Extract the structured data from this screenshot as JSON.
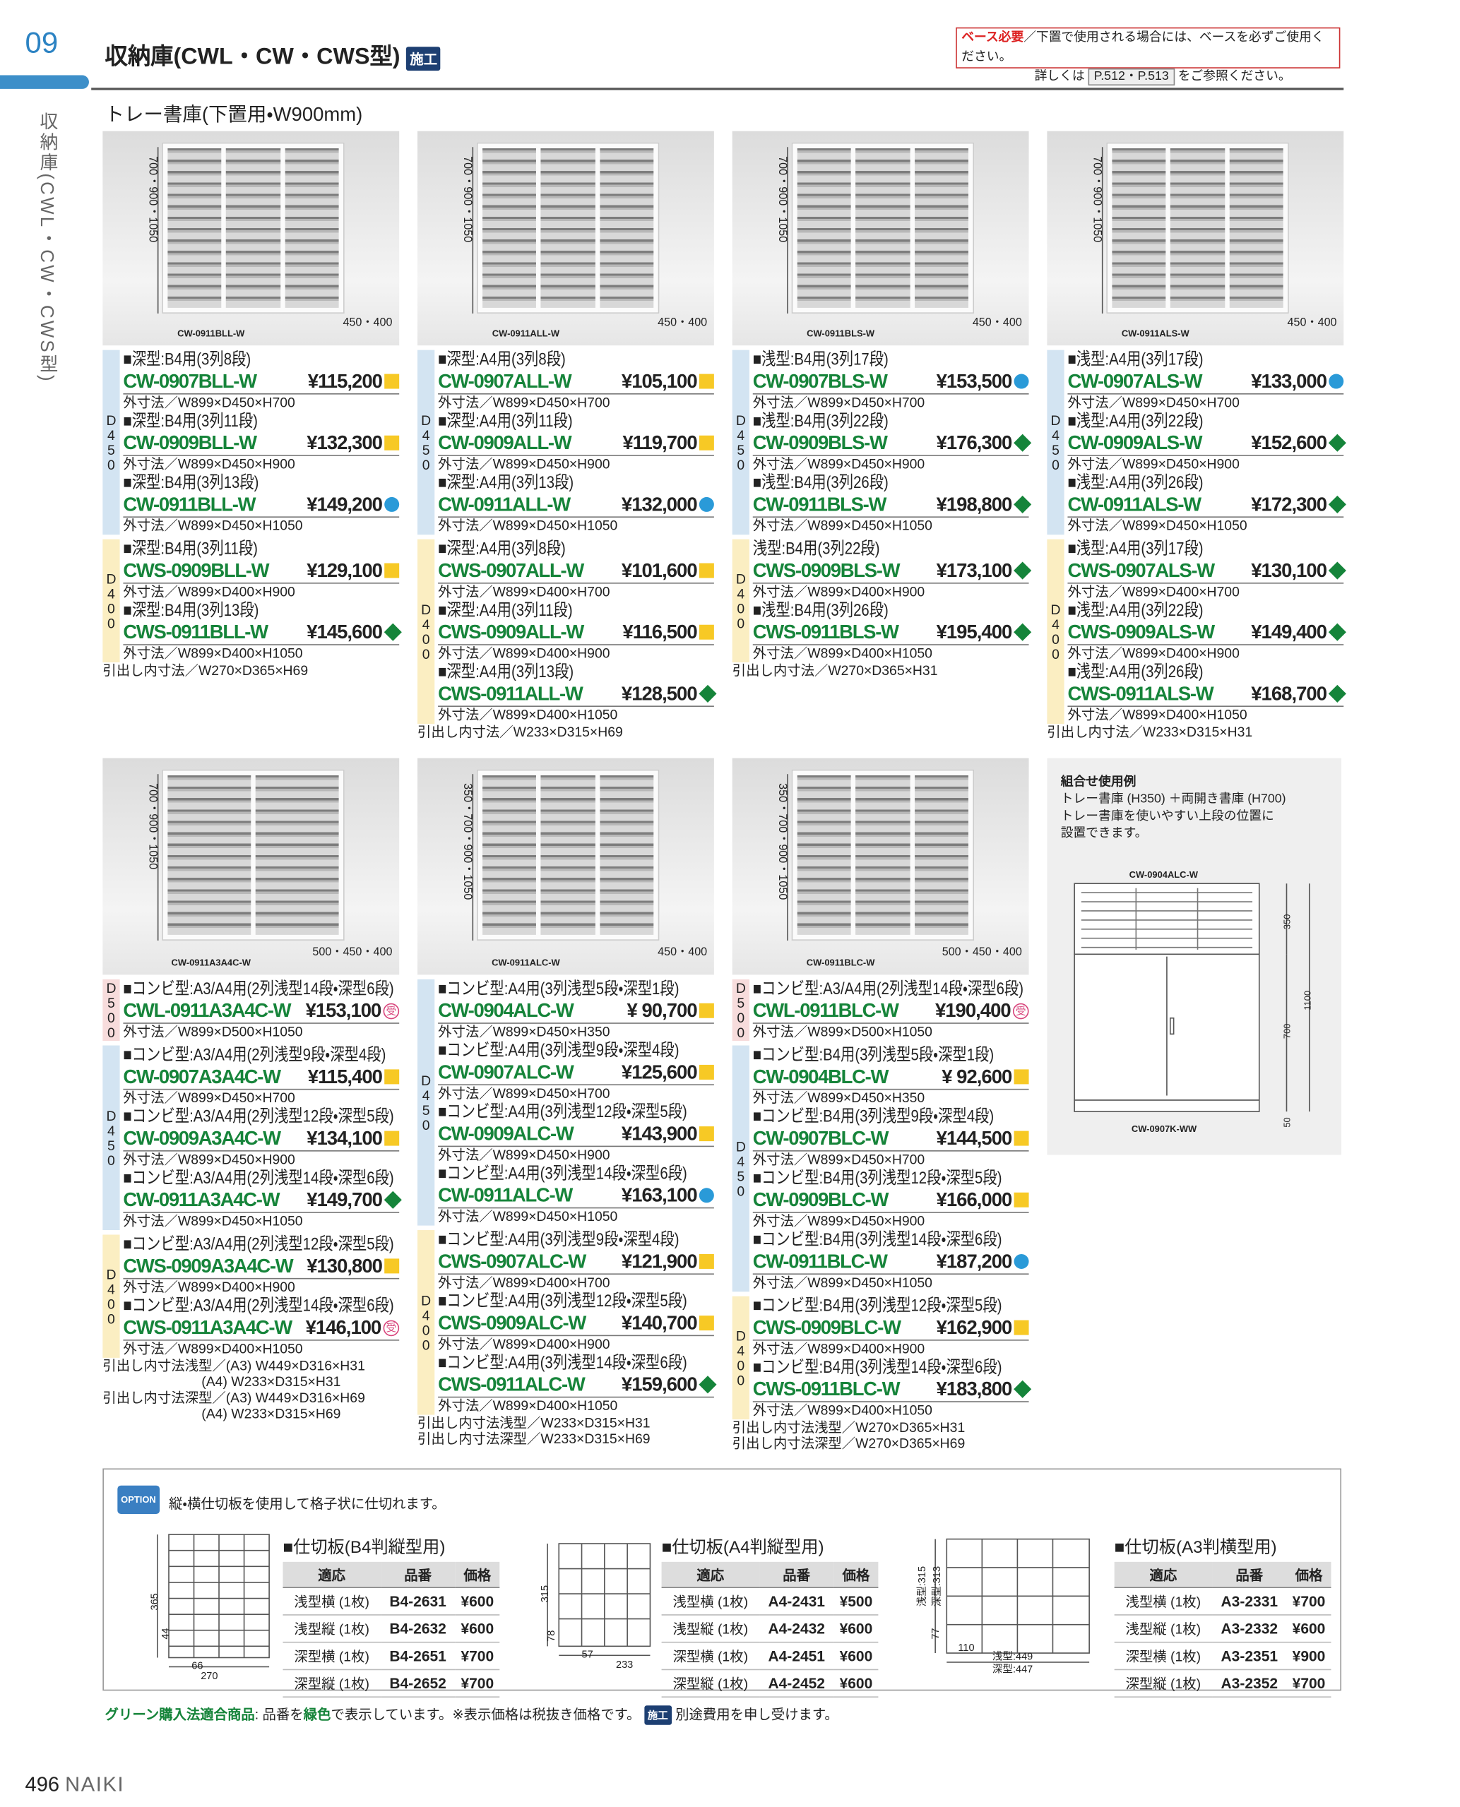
{
  "header": {
    "page_code": "09",
    "title": "収納庫(CWL・CW・CWS型)",
    "badge": "施工",
    "notice_label": "ベース必要",
    "notice_text": "／下置で使用される場合には、ベースを必ずご使用ください。",
    "notice_line2": "詳しくは",
    "notice_ref": "P.512・P.513",
    "notice_end": "をご参照ください。"
  },
  "side_label": "収納庫(CWL・CW・CWS型)",
  "section_title": "トレー書庫(下置用・W900mm)",
  "products": [
    {
      "image": {
        "caption": "CW-0911BLL-W",
        "height": "700・900・1050",
        "depth": "450・400"
      },
      "groups": [
        {
          "depth": "D450",
          "items": [
            {
              "spec": "■深型:B4用(3列8段)",
              "code": "CW-0907BLL-W",
              "price": "¥115,200",
              "mark": "square",
              "dims": "外寸法／W899×D450×H700"
            },
            {
              "spec": "■深型:B4用(3列11段)",
              "code": "CW-0909BLL-W",
              "price": "¥132,300",
              "mark": "square",
              "dims": "外寸法／W899×D450×H900"
            },
            {
              "spec": "■深型:B4用(3列13段)",
              "code": "CW-0911BLL-W",
              "price": "¥149,200",
              "mark": "circle",
              "dims": "外寸法／W899×D450×H1050"
            }
          ]
        },
        {
          "depth": "D400",
          "items": [
            {
              "spec": "■深型:B4用(3列11段)",
              "code": "CWS-0909BLL-W",
              "price": "¥129,100",
              "mark": "square",
              "dims": "外寸法／W899×D400×H900"
            },
            {
              "spec": "■深型:B4用(3列13段)",
              "code": "CWS-0911BLL-W",
              "price": "¥145,600",
              "mark": "diamond",
              "dims": "外寸法／W899×D400×H1050"
            }
          ]
        }
      ],
      "notes": [
        "引出し内寸法／W270×D365×H69"
      ]
    },
    {
      "image": {
        "caption": "CW-0911ALL-W",
        "height": "700・900・1050",
        "depth": "450・400"
      },
      "groups": [
        {
          "depth": "D450",
          "items": [
            {
              "spec": "■深型:A4用(3列8段)",
              "code": "CW-0907ALL-W",
              "price": "¥105,100",
              "mark": "square",
              "dims": "外寸法／W899×D450×H700"
            },
            {
              "spec": "■深型:A4用(3列11段)",
              "code": "CW-0909ALL-W",
              "price": "¥119,700",
              "mark": "square",
              "dims": "外寸法／W899×D450×H900"
            },
            {
              "spec": "■深型:A4用(3列13段)",
              "code": "CW-0911ALL-W",
              "price": "¥132,000",
              "mark": "circle",
              "dims": "外寸法／W899×D450×H1050"
            }
          ]
        },
        {
          "depth": "D400",
          "items": [
            {
              "spec": "■深型:A4用(3列8段)",
              "code": "CWS-0907ALL-W",
              "price": "¥101,600",
              "mark": "square",
              "dims": "外寸法／W899×D400×H700"
            },
            {
              "spec": "■深型:A4用(3列11段)",
              "code": "CWS-0909ALL-W",
              "price": "¥116,500",
              "mark": "square",
              "dims": "外寸法／W899×D400×H900"
            },
            {
              "spec": "■深型:A4用(3列13段)",
              "code": "CWS-0911ALL-W",
              "price": "¥128,500",
              "mark": "diamond",
              "dims": "外寸法／W899×D400×H1050"
            }
          ]
        }
      ],
      "notes": [
        "引出し内寸法／W233×D315×H69"
      ]
    },
    {
      "image": {
        "caption": "CW-0911BLS-W",
        "height": "700・900・1050",
        "depth": "450・400"
      },
      "groups": [
        {
          "depth": "D450",
          "items": [
            {
              "spec": "■浅型:B4用(3列17段)",
              "code": "CW-0907BLS-W",
              "price": "¥153,500",
              "mark": "circle",
              "dims": "外寸法／W899×D450×H700"
            },
            {
              "spec": "■浅型:B4用(3列22段)",
              "code": "CW-0909BLS-W",
              "price": "¥176,300",
              "mark": "diamond",
              "dims": "外寸法／W899×D450×H900"
            },
            {
              "spec": "■浅型:B4用(3列26段)",
              "code": "CW-0911BLS-W",
              "price": "¥198,800",
              "mark": "diamond",
              "dims": "外寸法／W899×D450×H1050"
            }
          ]
        },
        {
          "depth": "D400",
          "items": [
            {
              "spec": "浅型:B4用(3列22段)",
              "code": "CWS-0909BLS-W",
              "price": "¥173,100",
              "mark": "diamond",
              "dims": "外寸法／W899×D400×H900"
            },
            {
              "spec": "■浅型:B4用(3列26段)",
              "code": "CWS-0911BLS-W",
              "price": "¥195,400",
              "mark": "diamond",
              "dims": "外寸法／W899×D400×H1050"
            }
          ]
        }
      ],
      "notes": [
        "引出し内寸法／W270×D365×H31"
      ]
    },
    {
      "image": {
        "caption": "CW-0911ALS-W",
        "height": "700・900・1050",
        "depth": "450・400"
      },
      "groups": [
        {
          "depth": "D450",
          "items": [
            {
              "spec": "■浅型:A4用(3列17段)",
              "code": "CW-0907ALS-W",
              "price": "¥133,000",
              "mark": "circle",
              "dims": "外寸法／W899×D450×H700"
            },
            {
              "spec": "■浅型:A4用(3列22段)",
              "code": "CW-0909ALS-W",
              "price": "¥152,600",
              "mark": "diamond",
              "dims": "外寸法／W899×D450×H900"
            },
            {
              "spec": "■浅型:A4用(3列26段)",
              "code": "CW-0911ALS-W",
              "price": "¥172,300",
              "mark": "diamond",
              "dims": "外寸法／W899×D450×H1050"
            }
          ]
        },
        {
          "depth": "D400",
          "items": [
            {
              "spec": "■浅型:A4用(3列17段)",
              "code": "CWS-0907ALS-W",
              "price": "¥130,100",
              "mark": "diamond",
              "dims": "外寸法／W899×D400×H700"
            },
            {
              "spec": "■浅型:A4用(3列22段)",
              "code": "CWS-0909ALS-W",
              "price": "¥149,400",
              "mark": "diamond",
              "dims": "外寸法／W899×D400×H900"
            },
            {
              "spec": "■浅型:A4用(3列26段)",
              "code": "CWS-0911ALS-W",
              "price": "¥168,700",
              "mark": "diamond",
              "dims": "外寸法／W899×D400×H1050"
            }
          ]
        }
      ],
      "notes": [
        "引出し内寸法／W233×D315×H31"
      ]
    },
    {
      "image": {
        "caption": "CW-0911A3A4C-W",
        "height": "700・900・1050",
        "depth": "500・450・400"
      },
      "groups": [
        {
          "depth": "D500",
          "items": [
            {
              "spec": "■コンビ型:A3/A4用(2列浅型14段・深型6段)",
              "code": "CWL-0911A3A4C-W",
              "price": "¥153,100",
              "mark": "受",
              "dims": "外寸法／W899×D500×H1050"
            }
          ]
        },
        {
          "depth": "D450",
          "items": [
            {
              "spec": "■コンビ型:A3/A4用(2列浅型9段・深型4段)",
              "code": "CW-0907A3A4C-W",
              "price": "¥115,400",
              "mark": "square",
              "dims": "外寸法／W899×D450×H700"
            },
            {
              "spec": "■コンビ型:A3/A4用(2列浅型12段・深型5段)",
              "code": "CW-0909A3A4C-W",
              "price": "¥134,100",
              "mark": "square",
              "dims": "外寸法／W899×D450×H900"
            },
            {
              "spec": "■コンビ型:A3/A4用(2列浅型14段・深型6段)",
              "code": "CW-0911A3A4C-W",
              "price": "¥149,700",
              "mark": "diamond",
              "dims": "外寸法／W899×D450×H1050"
            }
          ]
        },
        {
          "depth": "D400",
          "items": [
            {
              "spec": "■コンビ型:A3/A4用(2列浅型12段・深型5段)",
              "code": "CWS-0909A3A4C-W",
              "price": "¥130,800",
              "mark": "square",
              "dims": "外寸法／W899×D400×H900"
            },
            {
              "spec": "■コンビ型:A3/A4用(2列浅型14段・深型6段)",
              "code": "CWS-0911A3A4C-W",
              "price": "¥146,100",
              "mark": "受",
              "dims": "外寸法／W899×D400×H1050"
            }
          ]
        }
      ],
      "notes": [
        "引出し内寸法浅型／(A3) W449×D316×H31",
        "                          (A4) W233×D315×H31",
        "引出し内寸法深型／(A3) W449×D316×H69",
        "                          (A4) W233×D315×H69"
      ]
    },
    {
      "image": {
        "caption": "CW-0911ALC-W",
        "height": "350・700・900・1050",
        "depth": "450・400"
      },
      "groups": [
        {
          "depth": "D450",
          "items": [
            {
              "spec": "■コンビ型:A4用(3列浅型5段・深型1段)",
              "code": "CW-0904ALC-W",
              "price": "¥ 90,700",
              "mark": "square",
              "dims": "外寸法／W899×D450×H350"
            },
            {
              "spec": "■コンビ型:A4用(3列浅型9段・深型4段)",
              "code": "CW-0907ALC-W",
              "price": "¥125,600",
              "mark": "square",
              "dims": "外寸法／W899×D450×H700"
            },
            {
              "spec": "■コンビ型:A4用(3列浅型12段・深型5段)",
              "code": "CW-0909ALC-W",
              "price": "¥143,900",
              "mark": "square",
              "dims": "外寸法／W899×D450×H900"
            },
            {
              "spec": "■コンビ型:A4用(3列浅型14段・深型6段)",
              "code": "CW-0911ALC-W",
              "price": "¥163,100",
              "mark": "circle",
              "dims": "外寸法／W899×D450×H1050"
            }
          ]
        },
        {
          "depth": "D400",
          "items": [
            {
              "spec": "■コンビ型:A4用(3列浅型9段・深型4段)",
              "code": "CWS-0907ALC-W",
              "price": "¥121,900",
              "mark": "square",
              "dims": "外寸法／W899×D400×H700"
            },
            {
              "spec": "■コンビ型:A4用(3列浅型12段・深型5段)",
              "code": "CWS-0909ALC-W",
              "price": "¥140,700",
              "mark": "square",
              "dims": "外寸法／W899×D400×H900"
            },
            {
              "spec": "■コンビ型:A4用(3列浅型14段・深型6段)",
              "code": "CWS-0911ALC-W",
              "price": "¥159,600",
              "mark": "diamond",
              "dims": "外寸法／W899×D400×H1050"
            }
          ]
        }
      ],
      "notes": [
        "引出し内寸法浅型／W233×D315×H31",
        "引出し内寸法深型／W233×D315×H69"
      ]
    },
    {
      "image": {
        "caption": "CW-0911BLC-W",
        "height": "350・700・900・1050",
        "depth": "500・450・400"
      },
      "groups": [
        {
          "depth": "D500",
          "items": [
            {
              "spec": "■コンビ型:A3/A4用(2列浅型14段・深型6段)",
              "code": "CWL-0911BLC-W",
              "price": "¥190,400",
              "mark": "受",
              "dims": "外寸法／W899×D500×H1050"
            }
          ]
        },
        {
          "depth": "D450",
          "items": [
            {
              "spec": "■コンビ型:B4用(3列浅型5段・深型1段)",
              "code": "CW-0904BLC-W",
              "price": "¥ 92,600",
              "mark": "square",
              "dims": "外寸法／W899×D450×H350"
            },
            {
              "spec": "■コンビ型:B4用(3列浅型9段・深型4段)",
              "code": "CW-0907BLC-W",
              "price": "¥144,500",
              "mark": "square",
              "dims": "外寸法／W899×D450×H700"
            },
            {
              "spec": "■コンビ型:B4用(3列浅型12段・深型5段)",
              "code": "CW-0909BLC-W",
              "price": "¥166,000",
              "mark": "square",
              "dims": "外寸法／W899×D450×H900"
            },
            {
              "spec": "■コンビ型:B4用(3列浅型14段・深型6段)",
              "code": "CW-0911BLC-W",
              "price": "¥187,200",
              "mark": "circle",
              "dims": "外寸法／W899×D450×H1050"
            }
          ]
        },
        {
          "depth": "D400",
          "items": [
            {
              "spec": "■コンビ型:B4用(3列浅型12段・深型5段)",
              "code": "CWS-0909BLC-W",
              "price": "¥162,900",
              "mark": "square",
              "dims": "外寸法／W899×D400×H900"
            },
            {
              "spec": "■コンビ型:B4用(3列浅型14段・深型6段)",
              "code": "CWS-0911BLC-W",
              "price": "¥183,800",
              "mark": "diamond",
              "dims": "外寸法／W899×D400×H1050"
            }
          ]
        }
      ],
      "notes": [
        "引出し内寸法浅型／W270×D365×H31",
        "引出し内寸法深型／W270×D365×H69"
      ]
    }
  ],
  "combo_example": {
    "title": "組合せ使用例",
    "lines": [
      "トレー書庫 (H350) ＋両開き書庫 (H700)",
      "トレー書庫を使いやすい上段の位置に",
      "設置できます。"
    ],
    "top_model": "CW-0904ALC-W",
    "bottom_model": "CW-0907K-WW",
    "dims": [
      "350",
      "700",
      "1100",
      "50"
    ]
  },
  "option": {
    "badge": "OPTION",
    "text": "縦・横仕切板を使用して格子状に仕切れます。",
    "tables": [
      {
        "title": "■仕切板(B4判縦型用)",
        "headers": [
          "適応",
          "品番",
          "価格"
        ],
        "rows": [
          [
            "浅型横 (1枚)",
            "B4-2631",
            "¥600"
          ],
          [
            "浅型縦 (1枚)",
            "B4-2632",
            "¥600"
          ],
          [
            "深型横 (1枚)",
            "B4-2651",
            "¥700"
          ],
          [
            "深型縦 (1枚)",
            "B4-2652",
            "¥700"
          ]
        ],
        "diagram_dims": [
          "365",
          "44",
          "66",
          "270"
        ]
      },
      {
        "title": "■仕切板(A4判縦型用)",
        "headers": [
          "適応",
          "品番",
          "価格"
        ],
        "rows": [
          [
            "浅型横 (1枚)",
            "A4-2431",
            "¥500"
          ],
          [
            "浅型縦 (1枚)",
            "A4-2432",
            "¥600"
          ],
          [
            "深型横 (1枚)",
            "A4-2451",
            "¥600"
          ],
          [
            "深型縦 (1枚)",
            "A4-2452",
            "¥600"
          ]
        ],
        "diagram_dims": [
          "315",
          "78",
          "57",
          "233"
        ]
      },
      {
        "title": "■仕切板(A3判横型用)",
        "headers": [
          "適応",
          "品番",
          "価格"
        ],
        "rows": [
          [
            "浅型横 (1枚)",
            "A3-2331",
            "¥700"
          ],
          [
            "浅型縦 (1枚)",
            "A3-2332",
            "¥600"
          ],
          [
            "深型横 (1枚)",
            "A3-2351",
            "¥900"
          ],
          [
            "深型縦 (1枚)",
            "A3-2352",
            "¥700"
          ]
        ],
        "diagram_dims": [
          "浅型:315",
          "深型:313",
          "77",
          "110",
          "浅型:449",
          "深型:447"
        ]
      }
    ]
  },
  "footer": {
    "green_label": "グリーン購入法適合商品",
    "text1": ": 品番を",
    "green_word": "緑色",
    "text2": "で表示しています。※表示価格は税抜き価格です。",
    "badge": "施工",
    "text3": "別途費用を申し受けます。",
    "page_number": "496",
    "brand": "NAIKI"
  }
}
